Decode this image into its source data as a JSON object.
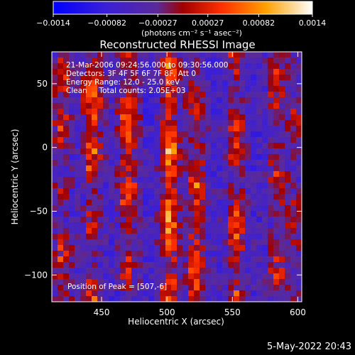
{
  "chart_data": {
    "type": "heatmap",
    "title": "Reconstructed RHESSI Image",
    "xlabel": "Heliocentric X (arcsec)",
    "ylabel": "Heliocentric Y (arcsec)",
    "xlim": [
      412,
      603
    ],
    "ylim": [
      -121,
      75
    ],
    "xticks": [
      450,
      500,
      550,
      600
    ],
    "yticks": [
      50,
      0,
      -50,
      -100
    ],
    "colorbar": {
      "range": [
        -0.0014,
        0.0014
      ],
      "tick_values": [
        -0.0014,
        -0.00082,
        -0.00027,
        0.00027,
        0.00082,
        0.0014
      ],
      "tick_labels": [
        "−0.0014",
        "−0.00082",
        "−0.00027",
        "0.00027",
        "0.00082",
        "0.0014"
      ],
      "unit_label": "(photons cm⁻² s⁻¹ asec⁻²)",
      "colors": [
        "#0000ff",
        "#6a2ea8",
        "#b00000",
        "#ff4000",
        "#ffa000",
        "#ffffff"
      ]
    },
    "annotations": [
      "21-Mar-2006 09:24:56.000 to 09:30:56.000",
      "Detectors: 3F 4F 5F 6F 7F 8F, Att 0",
      "Energy Range: 12.0 - 25.0 keV",
      "Clean     Total counts: 2.05E+03"
    ],
    "peak_label": "Position of Peak = [507,-6]",
    "peak": [
      507,
      -6
    ],
    "grid": false,
    "stripe_centers_x": [
      420,
      443,
      470,
      502,
      522,
      553,
      584,
      598
    ],
    "stripe_peak_intensity": [
      0.0009,
      0.0013,
      0.0012,
      0.0014,
      0.0011,
      0.0013,
      0.0014,
      0.0011
    ]
  },
  "footer": {
    "timestamp": "5-May-2022 20:43"
  }
}
